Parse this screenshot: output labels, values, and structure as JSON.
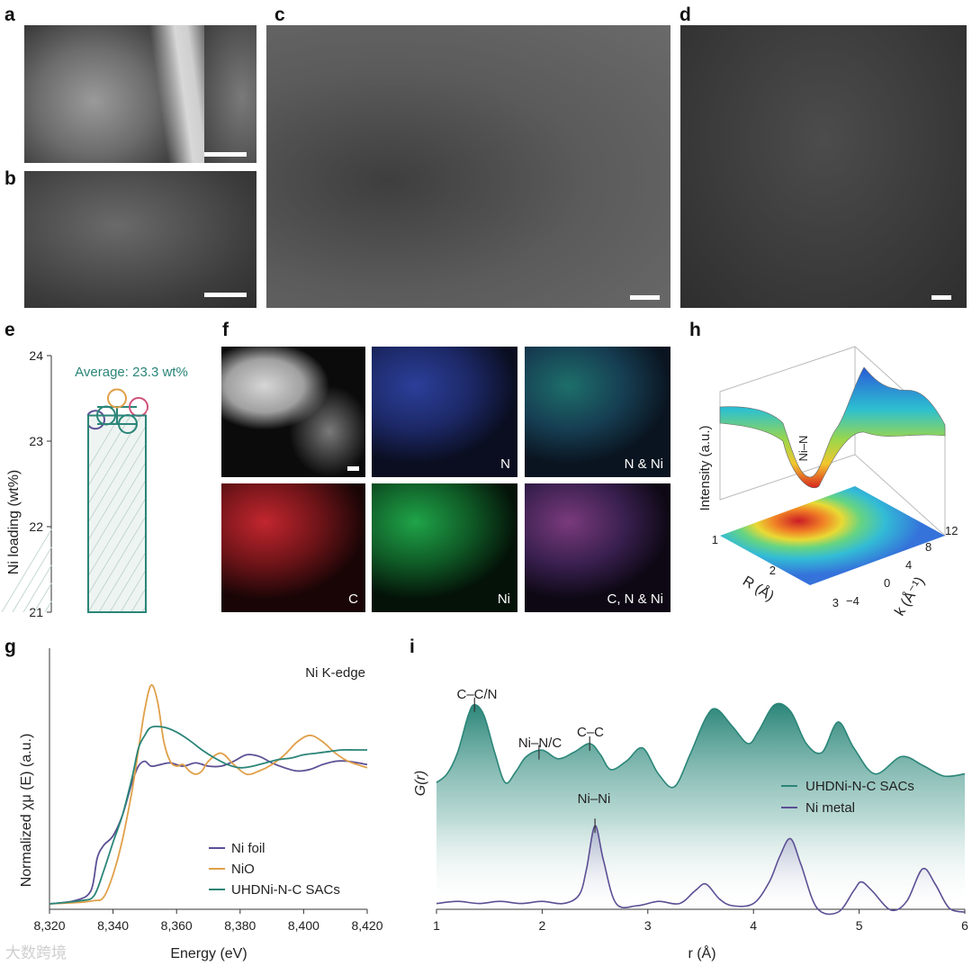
{
  "panels": {
    "a": "a",
    "b": "b",
    "c": "c",
    "d": "d",
    "e": "e",
    "f": "f",
    "g": "g",
    "h": "h",
    "i": "i"
  },
  "f_labels": {
    "n": "N",
    "n_ni": "N & Ni",
    "c": "C",
    "ni": "Ni",
    "c_n_ni": "C, N & Ni"
  },
  "watermark": "大数跨境",
  "colors": {
    "teal": "#2a8578",
    "purple": "#5c4f94",
    "orange": "#e0a04a",
    "pink": "#d0537a",
    "map_blue": "#2b3f9a",
    "map_red": "#c2262e",
    "map_green": "#1fa448"
  },
  "panel_e": {
    "annotation": "Average: 23.3 wt%",
    "ylabel": "Ni loading (wt%)",
    "yticks": [
      "21",
      "22",
      "23",
      "24"
    ],
    "ylim": [
      21,
      24
    ]
  },
  "panel_h": {
    "zlabel": "Intensity (a.u.)",
    "xlabel": "R (Å)",
    "ylabel": "k (Å⁻¹)",
    "peak_label": "Ni–N",
    "r_ticks": [
      "1",
      "2",
      "3"
    ],
    "k_ticks": [
      "−4",
      "0",
      "4",
      "8",
      "12"
    ]
  },
  "panel_g": {
    "title": "Ni K-edge",
    "xlabel": "Energy (eV)",
    "ylabel": "Normalized χμ (E) (a.u.)",
    "xticks": [
      "8,320",
      "8,340",
      "8,360",
      "8,380",
      "8,400",
      "8,420"
    ],
    "legend": [
      "Ni foil",
      "NiO",
      "UHDNi-N-C SACs"
    ]
  },
  "panel_i": {
    "xlabel": "r (Å)",
    "ylabel": "G(r)",
    "xticks": [
      "1",
      "2",
      "3",
      "4",
      "5",
      "6"
    ],
    "legend": [
      "UHDNi-N-C SACs",
      "Ni metal"
    ],
    "annotations": [
      "C–C/N",
      "Ni–N/C",
      "C–C",
      "Ni–Ni"
    ]
  },
  "chart_data": [
    {
      "type": "bar",
      "title": "",
      "xlabel": "",
      "ylabel": "Ni loading (wt%)",
      "ylim": [
        21,
        24
      ],
      "categories": [
        ""
      ],
      "values": [
        23.3
      ],
      "error": 0.1,
      "points": [
        23.25,
        23.5,
        23.3,
        23.4,
        23.2
      ]
    },
    {
      "type": "line",
      "title": "Ni K-edge",
      "xlabel": "Energy (eV)",
      "ylabel": "Normalized χμ (E) (a.u.)",
      "xlim": [
        8320,
        8420
      ],
      "series": [
        {
          "name": "Ni foil",
          "x": [
            8320,
            8328,
            8333,
            8335,
            8337,
            8340,
            8343,
            8346,
            8348,
            8350,
            8352,
            8355,
            8358,
            8362,
            8366,
            8370,
            8374,
            8378,
            8382,
            8386,
            8390,
            8394,
            8398,
            8402,
            8406,
            8410,
            8414,
            8420
          ],
          "y": [
            0.0,
            0.02,
            0.08,
            0.28,
            0.36,
            0.42,
            0.55,
            0.75,
            0.85,
            0.88,
            0.85,
            0.86,
            0.87,
            0.85,
            0.87,
            0.85,
            0.85,
            0.88,
            0.92,
            0.91,
            0.87,
            0.84,
            0.82,
            0.83,
            0.86,
            0.88,
            0.88,
            0.86
          ]
        },
        {
          "name": "NiO",
          "x": [
            8320,
            8330,
            8334,
            8337,
            8340,
            8343,
            8346,
            8348,
            8350,
            8352,
            8354,
            8356,
            8358,
            8360,
            8362,
            8364,
            8366,
            8368,
            8370,
            8374,
            8378,
            8382,
            8386,
            8390,
            8394,
            8398,
            8402,
            8406,
            8410,
            8414,
            8420
          ],
          "y": [
            0.0,
            0.01,
            0.02,
            0.04,
            0.18,
            0.4,
            0.7,
            0.95,
            1.2,
            1.35,
            1.25,
            1.0,
            0.88,
            0.85,
            0.86,
            0.82,
            0.8,
            0.82,
            0.88,
            0.93,
            0.86,
            0.8,
            0.82,
            0.86,
            0.92,
            1.0,
            1.04,
            1.0,
            0.93,
            0.88,
            0.84
          ]
        },
        {
          "name": "UHDNi-N-C SACs",
          "x": [
            8320,
            8330,
            8334,
            8337,
            8340,
            8343,
            8346,
            8348,
            8350,
            8352,
            8356,
            8360,
            8364,
            8368,
            8372,
            8376,
            8380,
            8384,
            8388,
            8392,
            8396,
            8400,
            8404,
            8408,
            8412,
            8416,
            8420
          ],
          "y": [
            0.0,
            0.02,
            0.05,
            0.2,
            0.38,
            0.55,
            0.78,
            0.96,
            1.04,
            1.09,
            1.09,
            1.06,
            1.01,
            0.95,
            0.9,
            0.86,
            0.84,
            0.85,
            0.87,
            0.89,
            0.9,
            0.92,
            0.93,
            0.94,
            0.95,
            0.95,
            0.95
          ]
        }
      ]
    },
    {
      "type": "area",
      "title": "",
      "xlabel": "r (Å)",
      "ylabel": "G(r)",
      "xlim": [
        1,
        6
      ],
      "series": [
        {
          "name": "UHDNi-N-C SACs",
          "x": [
            1.0,
            1.1,
            1.2,
            1.3,
            1.36,
            1.45,
            1.55,
            1.65,
            1.75,
            1.85,
            2.0,
            2.15,
            2.3,
            2.45,
            2.55,
            2.65,
            2.8,
            2.95,
            3.1,
            3.25,
            3.4,
            3.55,
            3.65,
            3.8,
            3.95,
            4.05,
            4.2,
            4.35,
            4.5,
            4.65,
            4.8,
            4.95,
            5.15,
            5.4,
            5.6,
            5.8,
            6.0
          ],
          "y": [
            0.62,
            0.66,
            0.76,
            0.93,
            0.98,
            0.93,
            0.76,
            0.62,
            0.67,
            0.74,
            0.77,
            0.73,
            0.76,
            0.8,
            0.75,
            0.68,
            0.72,
            0.78,
            0.66,
            0.6,
            0.75,
            0.92,
            0.96,
            0.88,
            0.8,
            0.86,
            0.98,
            0.95,
            0.8,
            0.76,
            0.9,
            0.78,
            0.66,
            0.74,
            0.7,
            0.65,
            0.66
          ]
        },
        {
          "name": "Ni metal",
          "x": [
            1.0,
            1.2,
            1.4,
            1.6,
            1.8,
            2.0,
            2.2,
            2.35,
            2.42,
            2.5,
            2.58,
            2.7,
            2.9,
            3.1,
            3.3,
            3.45,
            3.55,
            3.68,
            3.8,
            4.0,
            4.15,
            4.25,
            4.35,
            4.45,
            4.6,
            4.8,
            4.95,
            5.02,
            5.12,
            5.3,
            5.45,
            5.6,
            5.72,
            5.85,
            6.0
          ],
          "y": [
            0.06,
            0.07,
            0.06,
            0.07,
            0.06,
            0.07,
            0.06,
            0.1,
            0.22,
            0.42,
            0.26,
            0.06,
            0.05,
            0.07,
            0.06,
            0.12,
            0.15,
            0.08,
            0.05,
            0.06,
            0.16,
            0.28,
            0.36,
            0.24,
            0.04,
            0.02,
            0.12,
            0.16,
            0.12,
            0.03,
            0.07,
            0.22,
            0.15,
            0.04,
            0.02
          ]
        }
      ]
    }
  ]
}
